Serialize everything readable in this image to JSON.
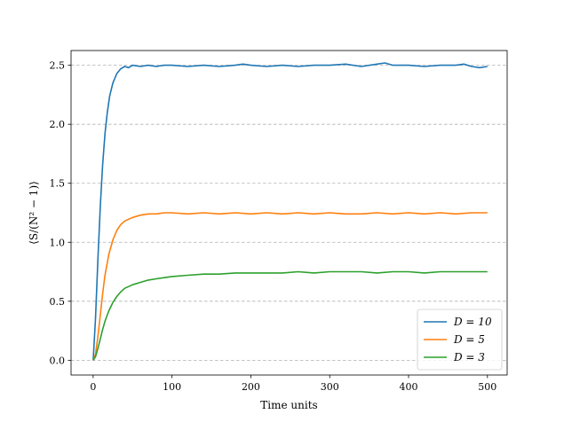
{
  "chart_data": {
    "type": "line",
    "title": "",
    "xlabel": "Time units",
    "ylabel": "⟨S/(N² − 1)⟩",
    "xlim": [
      -28,
      525
    ],
    "ylim": [
      -0.125,
      2.625
    ],
    "xticks": [
      0,
      100,
      200,
      300,
      400,
      500
    ],
    "yticks": [
      0.0,
      0.5,
      1.0,
      1.5,
      2.0,
      2.5
    ],
    "xtick_labels": [
      "0",
      "100",
      "200",
      "300",
      "400",
      "500"
    ],
    "ytick_labels": [
      "0.0",
      "0.5",
      "1.0",
      "1.5",
      "2.0",
      "2.5"
    ],
    "grid": "horizontal-dashed",
    "legend_position": "lower-right",
    "series": [
      {
        "name": "D = 10",
        "color": "#1f77b4",
        "x": [
          0,
          3,
          6,
          9,
          12,
          15,
          18,
          21,
          25,
          30,
          35,
          40,
          45,
          50,
          60,
          70,
          80,
          90,
          100,
          120,
          140,
          160,
          180,
          190,
          200,
          220,
          240,
          260,
          280,
          300,
          320,
          340,
          360,
          370,
          380,
          400,
          420,
          440,
          460,
          470,
          480,
          490,
          500
        ],
        "values": [
          0.0,
          0.35,
          0.85,
          1.3,
          1.65,
          1.92,
          2.1,
          2.24,
          2.35,
          2.43,
          2.47,
          2.49,
          2.48,
          2.5,
          2.49,
          2.5,
          2.49,
          2.5,
          2.5,
          2.49,
          2.5,
          2.49,
          2.5,
          2.51,
          2.5,
          2.49,
          2.5,
          2.49,
          2.5,
          2.5,
          2.51,
          2.49,
          2.51,
          2.52,
          2.5,
          2.5,
          2.49,
          2.5,
          2.5,
          2.51,
          2.49,
          2.48,
          2.49
        ]
      },
      {
        "name": "D = 5",
        "color": "#ff7f0e",
        "x": [
          0,
          3,
          6,
          9,
          12,
          15,
          20,
          25,
          30,
          35,
          40,
          50,
          60,
          70,
          80,
          90,
          100,
          120,
          140,
          160,
          180,
          200,
          220,
          240,
          260,
          280,
          300,
          320,
          340,
          360,
          380,
          400,
          420,
          440,
          460,
          480,
          500
        ],
        "values": [
          0.0,
          0.05,
          0.2,
          0.38,
          0.56,
          0.72,
          0.9,
          1.02,
          1.1,
          1.15,
          1.18,
          1.21,
          1.23,
          1.24,
          1.24,
          1.25,
          1.25,
          1.24,
          1.25,
          1.24,
          1.25,
          1.24,
          1.25,
          1.24,
          1.25,
          1.24,
          1.25,
          1.24,
          1.24,
          1.25,
          1.24,
          1.25,
          1.24,
          1.25,
          1.24,
          1.25,
          1.25
        ]
      },
      {
        "name": "D = 3",
        "color": "#2ca02c",
        "x": [
          0,
          3,
          6,
          9,
          12,
          15,
          20,
          25,
          30,
          35,
          40,
          50,
          60,
          70,
          80,
          90,
          100,
          120,
          140,
          160,
          180,
          200,
          220,
          240,
          260,
          280,
          300,
          320,
          340,
          360,
          380,
          400,
          420,
          440,
          460,
          480,
          500
        ],
        "values": [
          0.0,
          0.03,
          0.1,
          0.18,
          0.26,
          0.33,
          0.42,
          0.49,
          0.54,
          0.58,
          0.61,
          0.64,
          0.66,
          0.68,
          0.69,
          0.7,
          0.71,
          0.72,
          0.73,
          0.73,
          0.74,
          0.74,
          0.74,
          0.74,
          0.75,
          0.74,
          0.75,
          0.75,
          0.75,
          0.74,
          0.75,
          0.75,
          0.74,
          0.75,
          0.75,
          0.75,
          0.75
        ]
      }
    ]
  }
}
